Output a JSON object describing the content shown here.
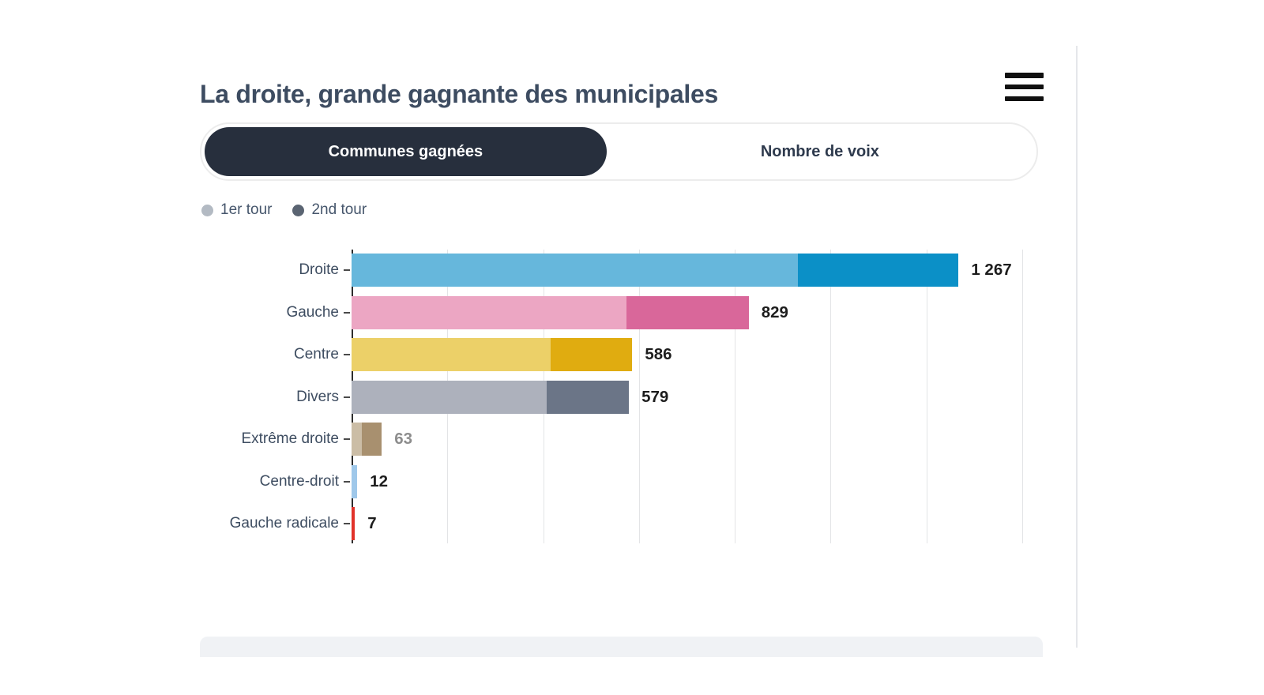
{
  "header": {
    "title": "La droite, grande gagnante des municipales",
    "menu_icon": "hamburger-icon"
  },
  "tabs": [
    {
      "label": "Communes gagnées",
      "active": true
    },
    {
      "label": "Nombre de voix",
      "active": false
    }
  ],
  "legend": [
    {
      "label": "1er tour",
      "color": "#b3bac3"
    },
    {
      "label": "2nd tour",
      "color": "#5a6472"
    }
  ],
  "chart_data": {
    "type": "bar",
    "orientation": "horizontal",
    "stacked": true,
    "title": "La droite, grande gagnante des municipales",
    "categories": [
      "Droite",
      "Gauche",
      "Centre",
      "Divers",
      "Extrême droite",
      "Centre-droit",
      "Gauche radicale"
    ],
    "series": [
      {
        "name": "1er tour",
        "values": [
          931,
          574,
          415,
          407,
          22,
          12,
          0
        ]
      },
      {
        "name": "2nd tour",
        "values": [
          336,
          255,
          171,
          172,
          41,
          0,
          7
        ]
      }
    ],
    "totals": [
      1267,
      829,
      586,
      579,
      63,
      12,
      7
    ],
    "total_labels": [
      "1 267",
      "829",
      "586",
      "579",
      "63",
      "12",
      "7"
    ],
    "colors_1er_tour": [
      "#66b7dc",
      "#eca6c3",
      "#ecd068",
      "#adb1bc",
      "#cbbda6",
      "#9fc8ea",
      "#f0948c"
    ],
    "colors_2nd_tour": [
      "#0b90c7",
      "#d9679a",
      "#e0ac10",
      "#6b7587",
      "#a8906f",
      "#5b9bd5",
      "#e1322a"
    ],
    "value_label_colors": [
      "#1d1d1d",
      "#1d1d1d",
      "#1d1d1d",
      "#1d1d1d",
      "#8d8d8d",
      "#1d1d1d",
      "#1d1d1d"
    ],
    "xlim": [
      0,
      1400
    ],
    "gridline_step": 200,
    "grid": true,
    "x_tick_labels_visible": false,
    "legend_position": "top-left"
  },
  "colors": {
    "title_text": "#3d4c61",
    "active_tab_bg": "#272f3d",
    "active_tab_text": "#ffffff",
    "inactive_tab_text": "#2e3a4d",
    "axis": "#2d2d2d",
    "gridline": "#e3e4e6",
    "footer_strip": "#f0f2f5"
  }
}
